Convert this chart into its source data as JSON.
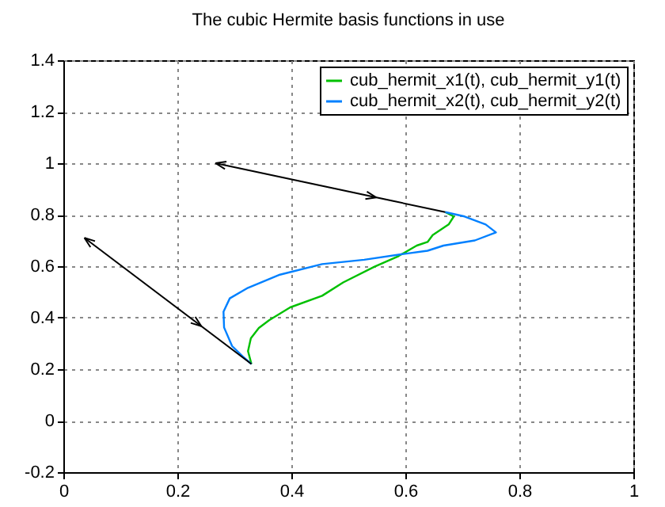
{
  "chart_data": {
    "type": "line",
    "title": "The cubic Hermite basis functions in use",
    "xlim": [
      0,
      1
    ],
    "ylim": [
      -0.2,
      1.4
    ],
    "xticks": [
      0,
      0.2,
      0.4,
      0.6,
      0.8,
      1
    ],
    "yticks": [
      -0.2,
      0,
      0.2,
      0.4,
      0.6,
      0.8,
      1,
      1.2,
      1.4
    ],
    "grid": true,
    "legend": "top right",
    "series": [
      {
        "name": "cub_hermit_x1(t), cub_hermit_y1(t)",
        "color": "#00c000",
        "x": [
          0.33,
          0.324,
          0.329,
          0.343,
          0.361,
          0.398,
          0.454,
          0.491,
          0.546,
          0.588,
          0.62,
          0.639,
          0.648,
          0.676,
          0.685,
          0.67
        ],
        "values": [
          0.22,
          0.27,
          0.32,
          0.36,
          0.39,
          0.44,
          0.485,
          0.537,
          0.598,
          0.639,
          0.68,
          0.694,
          0.721,
          0.762,
          0.793,
          0.81
        ]
      },
      {
        "name": "cub_hermit_x2(t), cub_hermit_y2(t)",
        "color": "#0080ff",
        "x": [
          0.33,
          0.315,
          0.296,
          0.282,
          0.281,
          0.292,
          0.324,
          0.38,
          0.454,
          0.528,
          0.602,
          0.639,
          0.667,
          0.722,
          0.759,
          0.741,
          0.704,
          0.67
        ],
        "values": [
          0.22,
          0.249,
          0.29,
          0.362,
          0.423,
          0.475,
          0.516,
          0.567,
          0.608,
          0.625,
          0.649,
          0.66,
          0.68,
          0.7,
          0.731,
          0.762,
          0.793,
          0.81
        ]
      },
      {
        "type": "line",
        "color": "#000000",
        "x": [
          0.33,
          0.037
        ],
        "values": [
          0.22,
          0.71
        ]
      },
      {
        "type": "line",
        "color": "#000000",
        "x": [
          0.67,
          0.267
        ],
        "values": [
          0.81,
          1.0
        ]
      }
    ]
  }
}
